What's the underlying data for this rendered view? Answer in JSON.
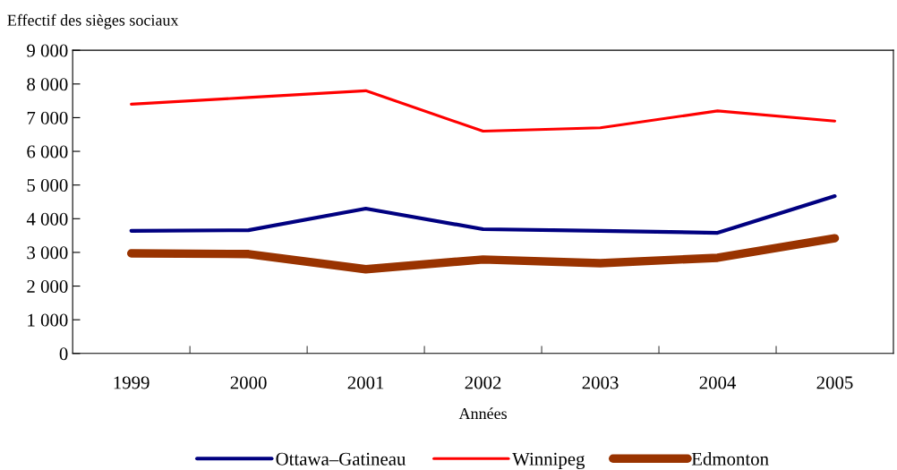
{
  "chart_data": {
    "type": "line",
    "ylabel": "Effectif des sièges sociaux",
    "xlabel": "Années",
    "categories": [
      "1999",
      "2000",
      "2001",
      "2002",
      "2003",
      "2004",
      "2005"
    ],
    "series": [
      {
        "name": "Ottawa–Gatineau",
        "color": "#000080",
        "values": [
          3640,
          3660,
          4300,
          3690,
          3640,
          3580,
          4670
        ]
      },
      {
        "name": "Winnipeg",
        "color": "#ff0000",
        "values": [
          7400,
          7600,
          7800,
          6600,
          6700,
          7200,
          6900
        ]
      },
      {
        "name": "Edmonton",
        "color": "#993300",
        "values": [
          2970,
          2950,
          2500,
          2790,
          2680,
          2840,
          3420
        ]
      }
    ],
    "ylim": [
      0,
      9000
    ],
    "yticks": [
      0,
      {
        "value": 1000,
        "label": "1 000"
      },
      {
        "value": 2000,
        "label": "2 000"
      },
      {
        "value": 3000,
        "label": "3 000"
      },
      {
        "value": 4000,
        "label": "4 000"
      },
      {
        "value": 5000,
        "label": "5 000"
      },
      {
        "value": 6000,
        "label": "6 000"
      },
      {
        "value": 7000,
        "label": "7 000"
      },
      {
        "value": 8000,
        "label": "8 000"
      },
      {
        "value": 9000,
        "label": "9 000"
      }
    ],
    "legend": "bottom",
    "grid": false,
    "marker": "none",
    "line_style": "solid"
  }
}
